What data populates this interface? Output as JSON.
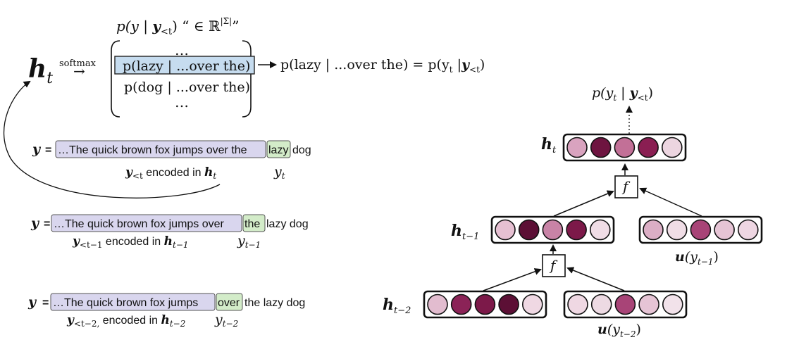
{
  "top_formula": {
    "prefix": "p(y | ",
    "y_bold": "y",
    "y_sub": "<t",
    "suffix": ")  “ ∈ ℝ",
    "sup": "|Σ̄|",
    "close": "”"
  },
  "ht_main": {
    "h": "h",
    "sub": "t"
  },
  "softmax_label": "softmax",
  "softmax_arrow": "→",
  "matrix": {
    "dots_top": "…",
    "row_lazy": "p(lazy | ...over the)",
    "row_dog": "p(dog | ...over the)",
    "dots_bottom": "…"
  },
  "result": {
    "left": "p(lazy | ...over the) = p(y",
    "t_sub": "t",
    "mid": " |",
    "y_bold": "y",
    "sub2": "<t",
    "close": ")"
  },
  "seq1": {
    "y_label": "y",
    "eq": "=",
    "context": "…The quick brown fox jumps over the",
    "target": "lazy",
    "after": "dog",
    "enc_y": "y",
    "enc_sub": "<t",
    "enc_text": " encoded in ",
    "enc_h": "h",
    "enc_h_sub": "t",
    "yt": "y",
    "yt_sub": "t"
  },
  "seq2": {
    "y_label": "y",
    "eq": "=",
    "context": "…The quick brown fox jumps over",
    "target": "the",
    "after": "lazy dog",
    "enc_y": "y",
    "enc_sub": "<t−1",
    "enc_text": " encoded in ",
    "enc_h": "h",
    "enc_h_sub": "t−1",
    "yt": "y",
    "yt_sub": "t−1"
  },
  "seq3": {
    "y_label": "y",
    "eq": "=",
    "context": "…The quick brown fox jumps",
    "target": "over",
    "after": "the lazy dog",
    "enc_y": "y",
    "enc_sub": "<t−2,",
    "enc_text": " encoded in ",
    "enc_h": "h",
    "enc_h_sub": "t−2",
    "yt": "y",
    "yt_sub": "t−2"
  },
  "network": {
    "output_label": {
      "p": "p(y",
      "t": "t",
      "bar": " | ",
      "y": "y",
      "sub": "<t",
      "close": ")"
    },
    "ht": {
      "h": "h",
      "sub": "t"
    },
    "ht1": {
      "h": "h",
      "sub": "t−1"
    },
    "ht2": {
      "h": "h",
      "sub": "t−2"
    },
    "u1": {
      "u": "u",
      "open": "(y",
      "sub": "t−1",
      "close": ")"
    },
    "u2": {
      "u": "u",
      "open": "(y",
      "sub": "t−2",
      "close": ")"
    },
    "f_label": "f",
    "cell_colors": {
      "ht": [
        "#d9a3bf",
        "#6e1440",
        "#c27097",
        "#8a1e52",
        "#ecd5e0"
      ],
      "ht1": [
        "#e6c0d2",
        "#5c0f35",
        "#c883a6",
        "#7c1949",
        "#f0dde6"
      ],
      "u1": [
        "#dbaec5",
        "#f0dde6",
        "#a84477",
        "#e6c4d5",
        "#eed6e2"
      ],
      "ht2": [
        "#e2bccf",
        "#8b2357",
        "#7c1949",
        "#5c0f35",
        "#efd8e3"
      ],
      "u2": [
        "#efd8e3",
        "#eddae3",
        "#a84477",
        "#e6c4d5",
        "#f2e2ea"
      ]
    }
  },
  "colors": {
    "context_fill": "#d9d6ee",
    "target_fill": "#d3ecc9",
    "matrix_highlight": "#c6dcef",
    "cell_border": "#111111"
  }
}
